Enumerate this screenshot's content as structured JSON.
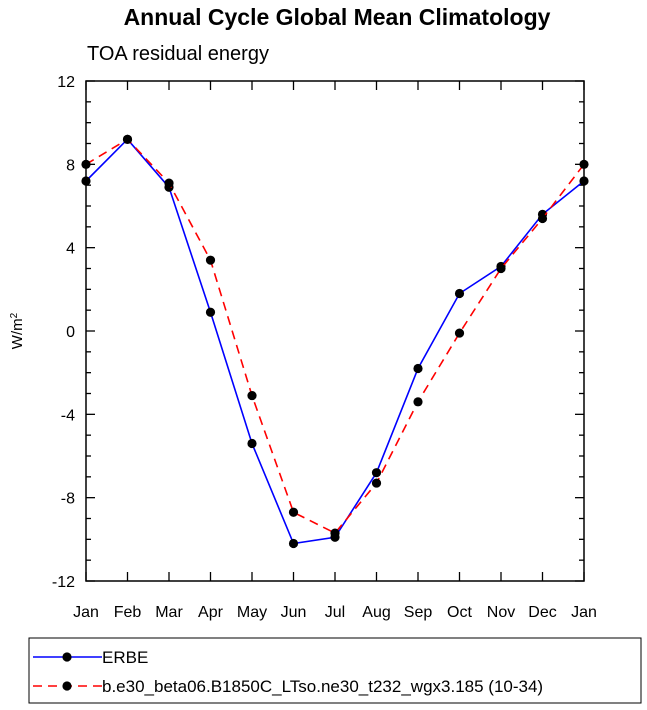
{
  "chart_data": {
    "type": "line",
    "title": "Annual Cycle Global Mean Climatology",
    "subtitle": "TOA residual energy",
    "ylabel_base": "W/m",
    "ylabel_sup": "2",
    "xlabel": "",
    "ylim": [
      -12,
      12
    ],
    "yticks": [
      12,
      8,
      4,
      0,
      -4,
      -8,
      -12
    ],
    "ytick_labels": [
      "12",
      "8",
      "4",
      "0",
      "-4",
      "-8",
      "-12"
    ],
    "categories": [
      "Jan",
      "Feb",
      "Mar",
      "Apr",
      "May",
      "Jun",
      "Jul",
      "Aug",
      "Sep",
      "Oct",
      "Nov",
      "Dec",
      "Jan"
    ],
    "grid": false,
    "legend_position": "bottom",
    "series": [
      {
        "name": "ERBE",
        "color": "#0000ff",
        "dashed": false,
        "marker": "filled-circle",
        "values": [
          7.2,
          9.2,
          6.9,
          0.9,
          -5.4,
          -10.2,
          -9.9,
          -6.8,
          -1.8,
          1.8,
          3.1,
          5.6,
          7.2
        ]
      },
      {
        "name": "b.e30_beta06.B1850C_LTso.ne30_t232_wgx3.185 (10-34)",
        "color": "#ff0000",
        "dashed": true,
        "marker": "filled-circle",
        "values": [
          8.0,
          9.2,
          7.1,
          3.4,
          -3.1,
          -8.7,
          -9.7,
          -7.3,
          -3.4,
          -0.1,
          3.0,
          5.4,
          8.0
        ]
      }
    ]
  }
}
